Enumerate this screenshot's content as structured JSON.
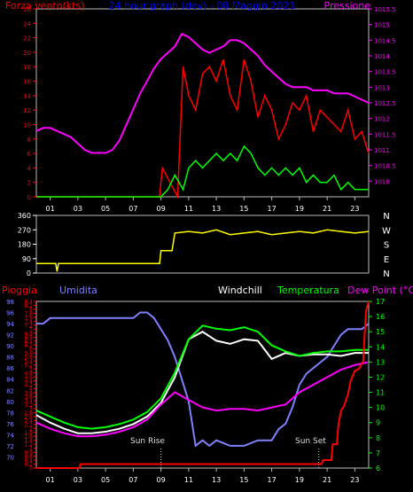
{
  "chart_data": [
    {
      "type": "line",
      "title": "24 hour graph (dev) - 08 Maggio 2021",
      "x_ticks": [
        "01",
        "03",
        "05",
        "07",
        "09",
        "11",
        "13",
        "15",
        "17",
        "19",
        "21",
        "23"
      ],
      "x_range": [
        0,
        24
      ],
      "left_axis": {
        "label": "Forza vento(kts)",
        "range": [
          0,
          26
        ],
        "ticks": [
          0,
          2,
          4,
          6,
          8,
          10,
          12,
          14,
          16,
          18,
          20,
          22,
          24,
          26
        ]
      },
      "right_axis": {
        "label": "Pressione",
        "range": [
          1009.5,
          1015.5
        ],
        "ticks": [
          1010,
          1010.5,
          1011,
          1011.5,
          1012,
          1012.5,
          1013,
          1013.5,
          1014,
          1014.5,
          1015,
          1015.5
        ]
      },
      "series": [
        {
          "name": "Pressione",
          "color": "#ff00ff",
          "axis": "right",
          "x": [
            0,
            0.5,
            1,
            1.5,
            2,
            2.5,
            3,
            3.5,
            4,
            4.5,
            5,
            5.5,
            6,
            6.5,
            7,
            7.5,
            8,
            8.5,
            9,
            9.5,
            10,
            10.5,
            11,
            11.5,
            12,
            12.5,
            13,
            13.5,
            14,
            14.5,
            15,
            15.5,
            16,
            16.5,
            17,
            17.5,
            18,
            18.5,
            19,
            19.5,
            20,
            20.5,
            21,
            21.5,
            22,
            22.5,
            23,
            23.5,
            24
          ],
          "y": [
            1011.6,
            1011.7,
            1011.7,
            1011.6,
            1011.5,
            1011.4,
            1011.2,
            1011.0,
            1010.9,
            1010.9,
            1010.9,
            1011.0,
            1011.3,
            1011.8,
            1012.3,
            1012.8,
            1013.2,
            1013.6,
            1013.9,
            1014.1,
            1014.3,
            1014.7,
            1014.6,
            1014.4,
            1014.2,
            1014.1,
            1014.2,
            1014.3,
            1014.5,
            1014.5,
            1014.4,
            1014.2,
            1014.0,
            1013.7,
            1013.5,
            1013.3,
            1013.1,
            1013.0,
            1013.0,
            1013.0,
            1012.9,
            1012.9,
            1012.9,
            1012.8,
            1012.8,
            1012.8,
            1012.7,
            1012.6,
            1012.5
          ]
        },
        {
          "name": "Raffica",
          "color": "#ff0000",
          "axis": "left",
          "x": [
            0,
            8.9,
            9.1,
            10.2,
            10.6,
            11.0,
            11.5,
            12.0,
            12.5,
            13.0,
            13.5,
            14.0,
            14.5,
            15.0,
            15.5,
            16.0,
            16.5,
            17.0,
            17.5,
            18.0,
            18.5,
            19.0,
            19.5,
            20.0,
            20.5,
            21.0,
            21.5,
            22.0,
            22.5,
            23.0,
            23.5,
            24.0
          ],
          "y": [
            0,
            0,
            4,
            0,
            18,
            14,
            12,
            17,
            18,
            16,
            19,
            14,
            12,
            19,
            16,
            11,
            14,
            12,
            8,
            10,
            13,
            12,
            14,
            9,
            12,
            11,
            10,
            9,
            12,
            8,
            9,
            6
          ]
        },
        {
          "name": "Vento medio",
          "color": "#00ff00",
          "axis": "left",
          "x": [
            0,
            9.0,
            9.5,
            10.0,
            10.6,
            11.0,
            11.5,
            12.0,
            12.5,
            13.0,
            13.5,
            14.0,
            14.5,
            15.0,
            15.5,
            16.0,
            16.5,
            17.0,
            17.5,
            18.0,
            18.5,
            19.0,
            19.5,
            20.0,
            20.5,
            21.0,
            21.5,
            22.0,
            22.5,
            23.0,
            23.5,
            24.0
          ],
          "y": [
            0,
            0,
            1,
            3,
            1,
            4,
            5,
            4,
            5,
            6,
            5,
            6,
            5,
            7,
            6,
            4,
            3,
            4,
            3,
            4,
            3,
            4,
            2,
            3,
            2,
            2,
            3,
            1,
            2,
            1,
            1,
            1
          ]
        }
      ]
    },
    {
      "type": "line",
      "title": "",
      "x_range": [
        0,
        24
      ],
      "left_axis": {
        "range": [
          0,
          360
        ],
        "ticks": [
          0,
          90,
          180,
          270,
          360
        ]
      },
      "right_labels": [
        "N",
        "W",
        "S",
        "E",
        "N"
      ],
      "series": [
        {
          "name": "Direzione",
          "color": "#ffff00",
          "x": [
            0,
            1.4,
            1.5,
            1.6,
            8.9,
            9.0,
            9.8,
            10.0,
            11,
            12,
            13,
            14,
            15,
            16,
            17,
            18,
            19,
            20,
            21,
            22,
            23,
            24
          ],
          "y": [
            60,
            60,
            10,
            60,
            60,
            140,
            140,
            250,
            260,
            250,
            270,
            240,
            250,
            260,
            240,
            250,
            260,
            250,
            270,
            260,
            250,
            260
          ]
        }
      ]
    },
    {
      "type": "line",
      "title": "",
      "headers": [
        "Pioggia",
        "Umidita",
        "Windchill",
        "Temperatura",
        "Dew Point (°C)"
      ],
      "annotations": [
        "Sun Rise",
        "Sun Set"
      ],
      "x_ticks": [
        "01",
        "03",
        "05",
        "07",
        "09",
        "11",
        "13",
        "15",
        "17",
        "19",
        "21",
        "23"
      ],
      "x_range": [
        0,
        24
      ],
      "rain_axis": {
        "range": [
          0,
          8.4
        ],
        "ticks": [
          0,
          0.2,
          0.4,
          0.6,
          0.8,
          1,
          1.2,
          1.4,
          1.6,
          1.8,
          2,
          2.2,
          2.4,
          2.6,
          2.8,
          3,
          3.2,
          3.4,
          3.6,
          3.8,
          4,
          4.2,
          4.4,
          4.6,
          4.8,
          5,
          5.2,
          5.4,
          5.6,
          5.8,
          6,
          6.2,
          6.4,
          6.6,
          6.8,
          7,
          7.2,
          7.4,
          7.6,
          7.8,
          8,
          8.2,
          8.4
        ],
        "label_ticks": [
          0,
          0.2,
          0.4,
          0.6,
          0.8,
          1,
          1.2,
          1.4,
          1.6,
          1.8,
          2,
          2.2,
          2.4,
          2.6,
          2.8,
          3,
          3.2,
          3.4,
          3.6,
          3.8,
          4,
          4.2,
          4.4,
          4.6,
          4.8,
          5,
          5.2,
          5.4,
          5.6,
          5.8,
          6,
          6.2,
          6.4,
          6.6,
          6.8,
          7,
          7.2,
          7.4,
          7.6,
          7.8,
          8,
          8.2,
          8.4
        ]
      },
      "humidity_axis": {
        "range": [
          68,
          98
        ],
        "ticks": [
          70,
          72,
          74,
          76,
          78,
          80,
          82,
          84,
          86,
          88,
          90,
          92,
          94,
          96,
          98
        ]
      },
      "temp_axis": {
        "range": [
          6,
          17
        ],
        "ticks": [
          6,
          7,
          8,
          9,
          10,
          11,
          12,
          13,
          14,
          15,
          16,
          17
        ]
      },
      "series": [
        {
          "name": "Umidita",
          "color": "#8080ff",
          "axis": "humidity",
          "x": [
            0,
            0.5,
            1,
            2,
            3,
            4,
            5,
            6,
            7,
            7.5,
            8,
            8.5,
            9,
            9.5,
            10,
            10.5,
            11,
            11.5,
            12,
            12.5,
            13,
            14,
            15,
            16,
            17,
            17.5,
            18,
            18.5,
            19,
            19.5,
            20,
            20.5,
            21,
            21.5,
            22,
            22.5,
            23,
            23.5,
            24
          ],
          "y": [
            94,
            94,
            95,
            95,
            95,
            95,
            95,
            95,
            95,
            96,
            96,
            95,
            93,
            91,
            88,
            84,
            80,
            72,
            73,
            72,
            73,
            72,
            72,
            73,
            73,
            75,
            76,
            79,
            83,
            85,
            86,
            87,
            88,
            90,
            92,
            93,
            93,
            93,
            94
          ]
        },
        {
          "name": "Windchill",
          "color": "#ffffff",
          "axis": "temp",
          "x": [
            0,
            1,
            2,
            3,
            4,
            5,
            6,
            7,
            8,
            9,
            10,
            11,
            12,
            13,
            14,
            15,
            16,
            17,
            18,
            19,
            20,
            21,
            22,
            23,
            24
          ],
          "y": [
            9.5,
            9,
            8.6,
            8.3,
            8.3,
            8.4,
            8.6,
            8.9,
            9.4,
            10.3,
            12,
            14.5,
            15,
            14.4,
            14.2,
            14.5,
            14.4,
            13.2,
            13.6,
            13.4,
            13.5,
            13.5,
            13.4,
            13.6,
            13.6
          ]
        },
        {
          "name": "Temperatura",
          "color": "#00ff00",
          "axis": "temp",
          "x": [
            0,
            1,
            2,
            3,
            4,
            5,
            6,
            7,
            8,
            9,
            10,
            11,
            12,
            13,
            14,
            15,
            16,
            17,
            18,
            19,
            20,
            21,
            22,
            23,
            24
          ],
          "y": [
            9.8,
            9.4,
            9.0,
            8.7,
            8.6,
            8.7,
            8.9,
            9.2,
            9.7,
            10.6,
            12.3,
            14.5,
            15.4,
            15.2,
            15.1,
            15.3,
            15.0,
            14.1,
            13.7,
            13.4,
            13.6,
            13.7,
            13.7,
            13.8,
            13.8
          ]
        },
        {
          "name": "Dew Point",
          "color": "#ff00ff",
          "axis": "temp",
          "x": [
            0,
            1,
            2,
            3,
            4,
            5,
            6,
            7,
            8,
            9,
            10,
            11,
            12,
            13,
            14,
            15,
            16,
            17,
            18,
            19,
            20,
            21,
            22,
            23,
            24
          ],
          "y": [
            9.0,
            8.6,
            8.3,
            8.1,
            8.1,
            8.2,
            8.4,
            8.7,
            9.2,
            10.2,
            11,
            10.5,
            10,
            9.8,
            9.9,
            9.9,
            9.8,
            10,
            10.2,
            11,
            11.5,
            12,
            12.5,
            12.8,
            13
          ]
        },
        {
          "name": "Pioggia",
          "color": "#ff0000",
          "axis": "rain",
          "x": [
            0,
            3.1,
            3.2,
            20.6,
            20.7,
            21.3,
            21.4,
            21.7,
            21.8,
            22,
            22.2,
            22.5,
            22.7,
            23,
            23.3,
            23.6,
            23.8,
            24
          ],
          "y": [
            0,
            0,
            0.2,
            0.2,
            0.4,
            0.4,
            1.2,
            1.2,
            2.1,
            2.9,
            3.1,
            3.7,
            4.4,
            4.9,
            5.0,
            5.4,
            7.9,
            8.4
          ]
        }
      ]
    }
  ]
}
